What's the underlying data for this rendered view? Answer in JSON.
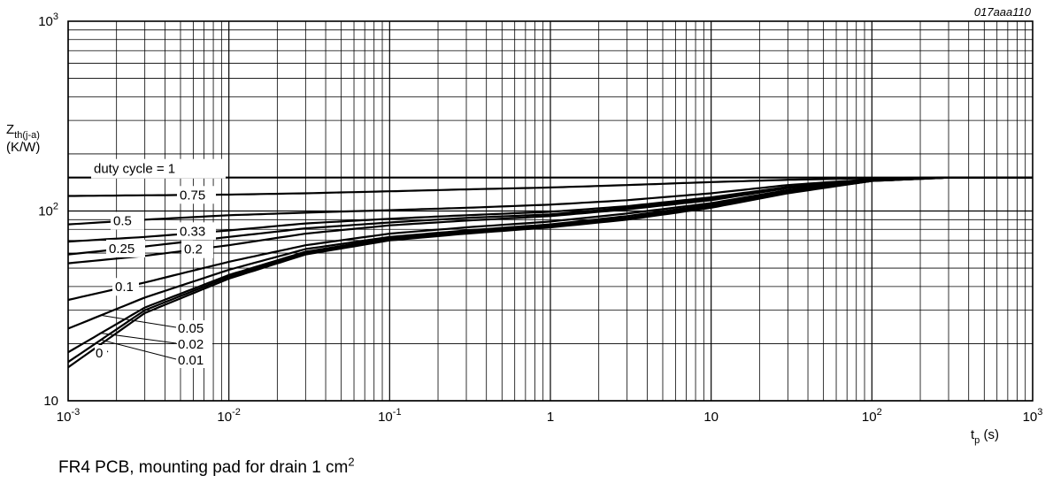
{
  "chart_data": {
    "type": "line",
    "title": "",
    "code": "017aaa110",
    "xlabel": {
      "main": "t",
      "sub": "p",
      "unit": " (s)"
    },
    "ylabel": {
      "main": "Z",
      "sub": "th(j-a)",
      "unit": "(K/W)"
    },
    "x_scale": "log",
    "y_scale": "log",
    "xlim": [
      0.001,
      1000
    ],
    "ylim": [
      10,
      1000
    ],
    "grid": true,
    "x_ticks": [
      {
        "value": 0.001,
        "base": "10",
        "exp": "-3"
      },
      {
        "value": 0.01,
        "base": "10",
        "exp": "-2"
      },
      {
        "value": 0.1,
        "base": "10",
        "exp": "-1"
      },
      {
        "value": 1,
        "base": "1",
        "exp": ""
      },
      {
        "value": 10,
        "base": "10",
        "exp": ""
      },
      {
        "value": 100,
        "base": "10",
        "exp": "2"
      },
      {
        "value": 1000,
        "base": "10",
        "exp": "3"
      }
    ],
    "y_ticks": [
      {
        "value": 10,
        "base": "10",
        "exp": ""
      },
      {
        "value": 100,
        "base": "10",
        "exp": "2"
      },
      {
        "value": 1000,
        "base": "10",
        "exp": "3"
      }
    ],
    "series": [
      {
        "name": "duty cycle = 1",
        "x": [
          0.001,
          1000
        ],
        "y": [
          150,
          150
        ]
      },
      {
        "name": "0.75",
        "x": [
          0.001,
          0.003,
          0.01,
          0.03,
          0.1,
          0.3,
          1,
          3,
          10,
          30,
          100,
          300,
          1000
        ],
        "y": [
          120,
          121,
          122,
          124,
          127,
          130,
          133,
          137,
          142,
          146,
          149,
          150,
          150
        ]
      },
      {
        "name": "0.5",
        "x": [
          0.001,
          0.003,
          0.01,
          0.03,
          0.1,
          0.3,
          1,
          3,
          10,
          30,
          100,
          300,
          1000
        ],
        "y": [
          85,
          90,
          95,
          98,
          101,
          104,
          108,
          114,
          124,
          137,
          147,
          150,
          150
        ]
      },
      {
        "name": "0.33",
        "x": [
          0.001,
          0.003,
          0.01,
          0.03,
          0.1,
          0.3,
          1,
          3,
          10,
          30,
          100,
          300,
          1000
        ],
        "y": [
          69,
          73,
          79,
          86,
          91,
          95,
          99,
          106,
          118,
          134,
          146,
          150,
          150
        ]
      },
      {
        "name": "0.25",
        "x": [
          0.001,
          0.003,
          0.01,
          0.03,
          0.1,
          0.3,
          1,
          3,
          10,
          30,
          100,
          300,
          1000
        ],
        "y": [
          59,
          65,
          73,
          81,
          87,
          92,
          96,
          104,
          116,
          133,
          146,
          150,
          150
        ]
      },
      {
        "name": "0.2",
        "x": [
          0.001,
          0.003,
          0.01,
          0.03,
          0.1,
          0.3,
          1,
          3,
          10,
          30,
          100,
          300,
          1000
        ],
        "y": [
          53,
          58,
          66,
          76,
          84,
          89,
          94,
          102,
          114,
          132,
          146,
          150,
          150
        ]
      },
      {
        "name": "0.1",
        "x": [
          0.001,
          0.003,
          0.01,
          0.03,
          0.1,
          0.3,
          1,
          3,
          10,
          30,
          100,
          300,
          1000
        ],
        "y": [
          34,
          42,
          54,
          66,
          76,
          82,
          88,
          97,
          110,
          129,
          145,
          150,
          150
        ]
      },
      {
        "name": "0.05",
        "x": [
          0.001,
          0.003,
          0.01,
          0.03,
          0.1,
          0.3,
          1,
          3,
          10,
          30,
          100,
          300,
          1000
        ],
        "y": [
          24,
          35,
          49,
          63,
          73,
          79,
          85,
          94,
          108,
          127,
          145,
          150,
          150
        ]
      },
      {
        "name": "0.02",
        "x": [
          0.001,
          0.003,
          0.01,
          0.03,
          0.1,
          0.3,
          1,
          3,
          10,
          30,
          100,
          300,
          1000
        ],
        "y": [
          18,
          31,
          46,
          61,
          72,
          78,
          84,
          92,
          106,
          126,
          144,
          150,
          150
        ]
      },
      {
        "name": "0.01",
        "x": [
          0.001,
          0.003,
          0.01,
          0.03,
          0.1,
          0.3,
          1,
          3,
          10,
          30,
          100,
          300,
          1000
        ],
        "y": [
          16,
          30,
          45,
          60,
          71,
          77,
          83,
          91,
          105,
          125,
          144,
          150,
          150
        ]
      },
      {
        "name": "0",
        "x": [
          0.001,
          0.003,
          0.01,
          0.03,
          0.1,
          0.3,
          1,
          3,
          10,
          30,
          100,
          300,
          1000
        ],
        "y": [
          15,
          29,
          44,
          59,
          70,
          76,
          82,
          90,
          104,
          124,
          144,
          150,
          150
        ]
      }
    ],
    "caption": {
      "text": "FR4 PCB, mounting pad for drain 1 cm",
      "sup": "2"
    }
  }
}
